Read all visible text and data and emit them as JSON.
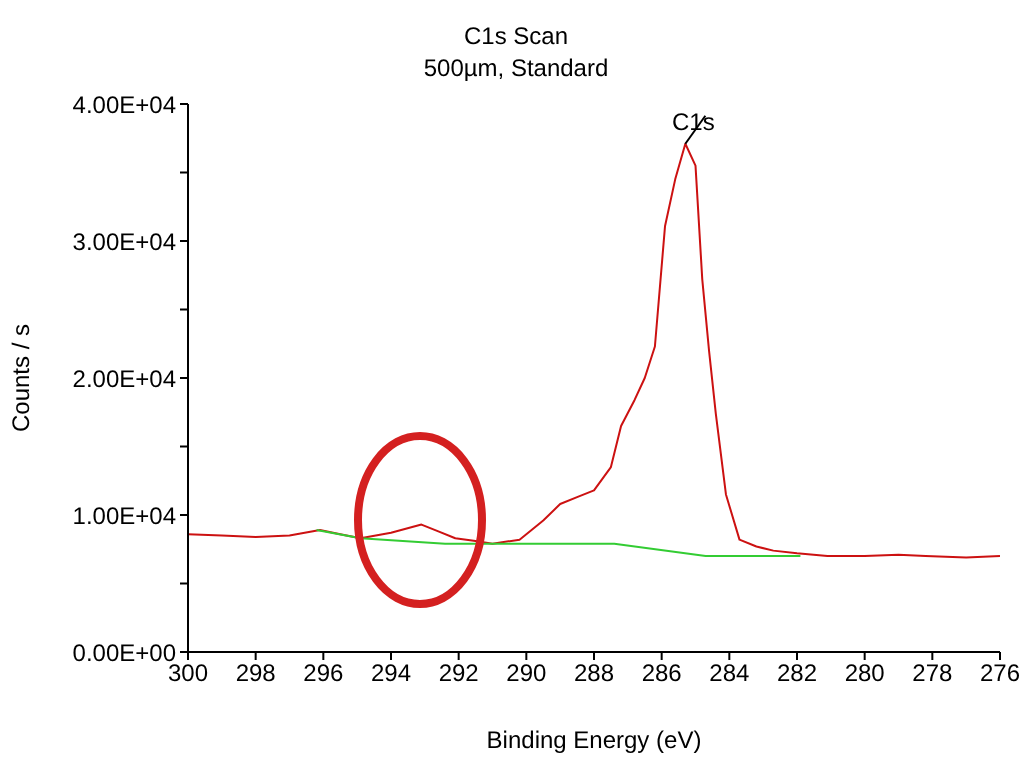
{
  "chart_data": {
    "type": "line",
    "title": "C1s Scan",
    "subtitle": "500µm,  Standard",
    "xlabel": "Binding Energy (eV)",
    "ylabel": "Counts / s",
    "xlim": [
      300,
      276
    ],
    "xticks": [
      300,
      298,
      296,
      294,
      292,
      290,
      288,
      286,
      284,
      282,
      280,
      278,
      276
    ],
    "ylim": [
      0,
      40000
    ],
    "yticks": [
      {
        "value": 0,
        "label": "0.00E+00"
      },
      {
        "value": 5000,
        "label": null
      },
      {
        "value": 10000,
        "label": "1.00E+04"
      },
      {
        "value": 15000,
        "label": null
      },
      {
        "value": 20000,
        "label": "2.00E+04"
      },
      {
        "value": 25000,
        "label": null
      },
      {
        "value": 30000,
        "label": "3.00E+04"
      },
      {
        "value": 35000,
        "label": null
      },
      {
        "value": 40000,
        "label": "4.00E+04"
      }
    ],
    "annotations": [
      {
        "text": "C1s",
        "x": 285.3,
        "y": 37100
      }
    ],
    "series": [
      {
        "color": "#cc1111",
        "x": [
          300,
          299,
          298,
          297,
          296.1,
          295.5,
          294.9,
          294,
          293.1,
          292.6,
          292.1,
          291.5,
          291,
          290.2,
          289.5,
          289,
          288.5,
          288,
          287.5,
          287.2,
          286.8,
          286.5,
          286.2,
          285.9,
          285.6,
          285.3,
          285,
          284.8,
          284.6,
          284.4,
          284.1,
          283.7,
          283.2,
          282.7,
          282,
          281.1,
          280,
          279,
          278.2,
          277,
          276
        ],
        "values": [
          8600,
          8500,
          8400,
          8500,
          8900,
          8600,
          8300,
          8700,
          9300,
          8800,
          8300,
          8100,
          7900,
          8200,
          9600,
          10800,
          11300,
          11800,
          13500,
          16500,
          18400,
          20000,
          22300,
          31100,
          34500,
          37100,
          35500,
          27200,
          22000,
          17400,
          11500,
          8200,
          7700,
          7400,
          7200,
          7000,
          7000,
          7100,
          7000,
          6900,
          7000
        ]
      },
      {
        "color": "#33cc33",
        "x": [
          296.2,
          294.9,
          292.4,
          287.4,
          284.7,
          281.9
        ],
        "values": [
          8900,
          8300,
          7900,
          7900,
          7000,
          7000
        ]
      }
    ]
  }
}
